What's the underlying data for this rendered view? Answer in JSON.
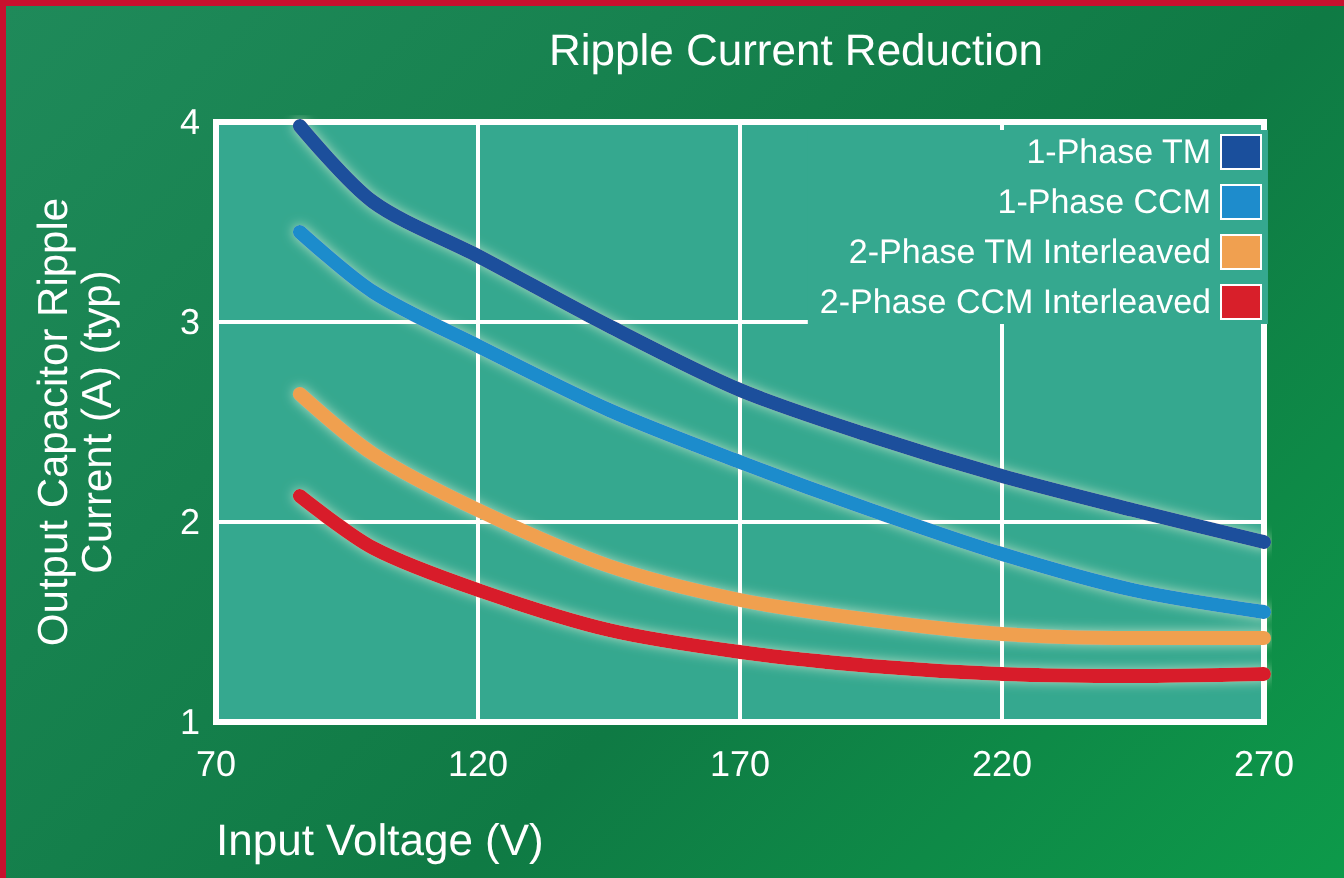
{
  "chart_data": {
    "type": "line",
    "title": "Ripple Current Reduction",
    "xlabel": "Input Voltage (V)",
    "ylabel": "Output Capacitor Ripple Current (A) (typ)",
    "x": [
      86,
      100,
      120,
      145,
      170,
      195,
      220,
      245,
      270
    ],
    "series": [
      {
        "name": "1-Phase TM",
        "color": "#1a4f9c",
        "values": [
          3.98,
          3.6,
          3.33,
          2.98,
          2.66,
          2.43,
          2.23,
          2.06,
          1.9
        ]
      },
      {
        "name": "1-Phase CCM",
        "color": "#1e8ccc",
        "values": [
          3.45,
          3.15,
          2.88,
          2.56,
          2.3,
          2.06,
          1.84,
          1.66,
          1.55
        ]
      },
      {
        "name": "2-Phase TM Interleaved",
        "color": "#f0a050",
        "values": [
          2.64,
          2.34,
          2.06,
          1.78,
          1.61,
          1.51,
          1.44,
          1.42,
          1.42
        ]
      },
      {
        "name": "2-Phase CCM Interleaved",
        "color": "#d81f2a",
        "values": [
          2.13,
          1.87,
          1.66,
          1.46,
          1.35,
          1.28,
          1.24,
          1.23,
          1.24
        ]
      }
    ],
    "xlim": [
      70,
      270
    ],
    "xticks": [
      70,
      120,
      170,
      220,
      270
    ],
    "ylim": [
      1,
      4
    ],
    "yticks": [
      1,
      2,
      3,
      4
    ],
    "grid": true,
    "legend": "top right",
    "line_style": "solid"
  }
}
